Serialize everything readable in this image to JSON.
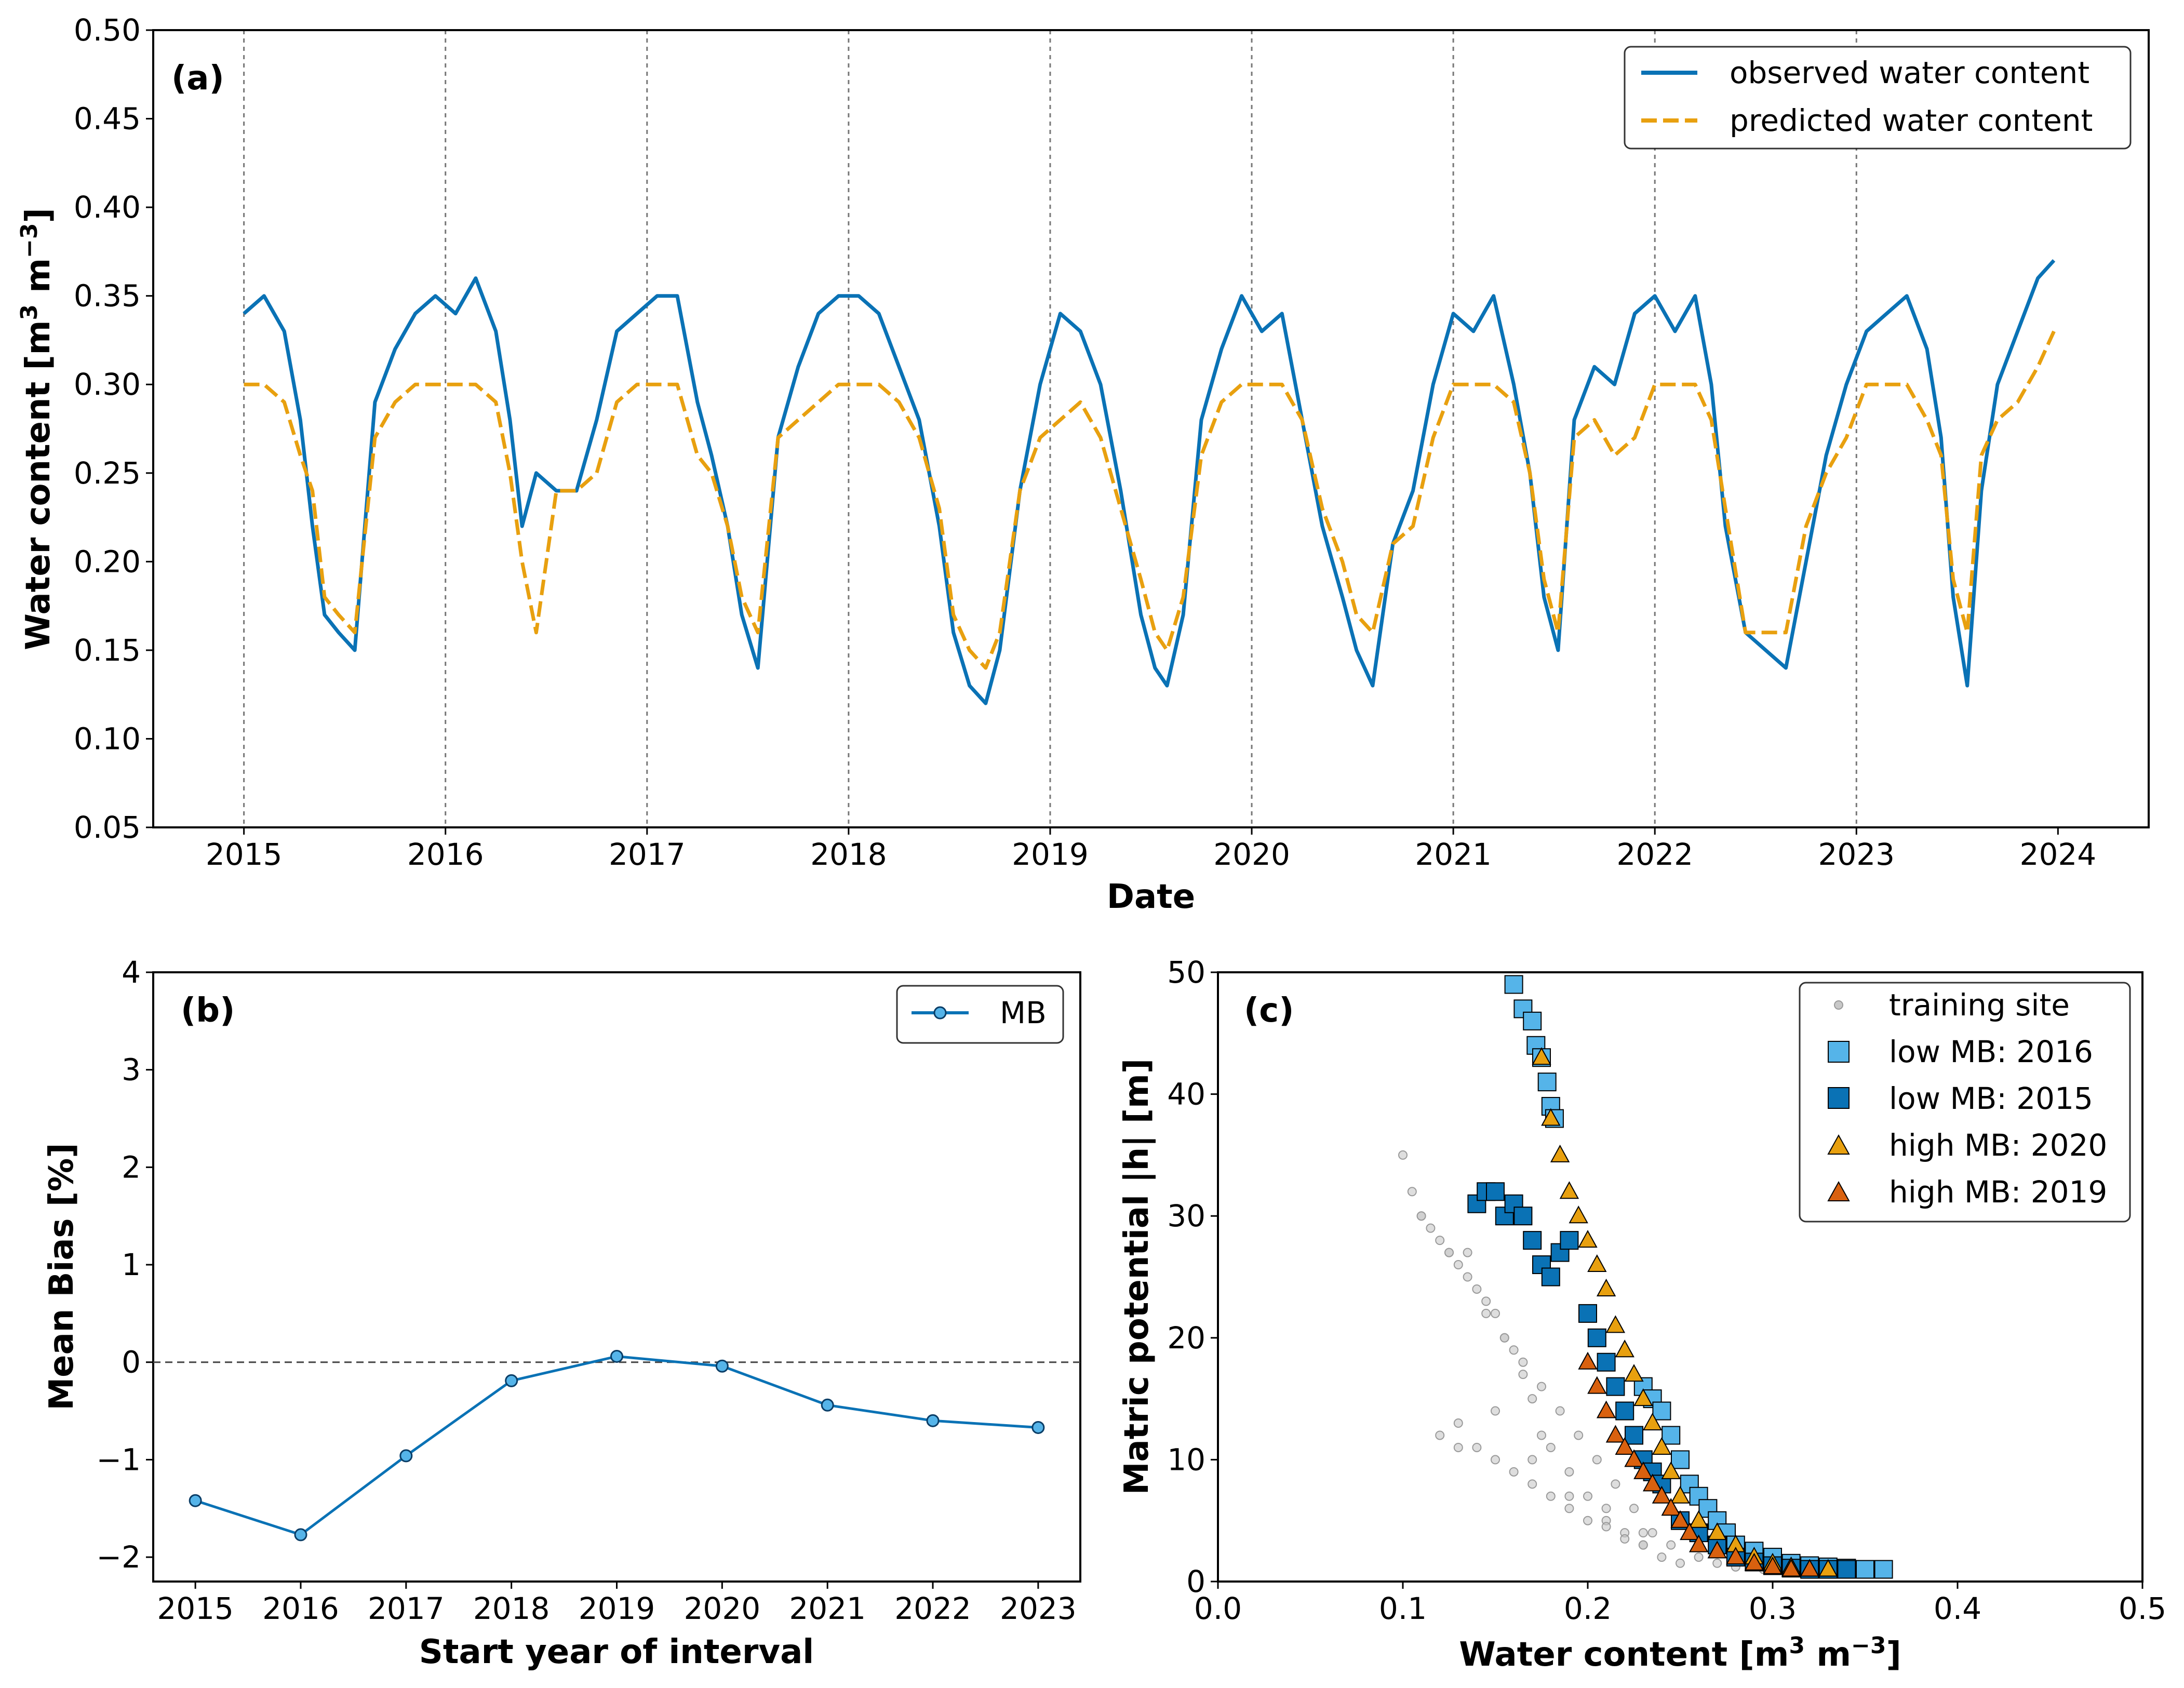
{
  "colors": {
    "blue": "#0a72b5",
    "orange": "#e8a00f",
    "light_blue": "#55b4e9",
    "dark_orange": "#d9610f",
    "gray": "#9a9a9a"
  },
  "chart_data": [
    {
      "type": "line",
      "panel_label": "(a)",
      "xlabel": "Date",
      "ylabel": "Water content [m³ m⁻³]",
      "ylabel_parts": {
        "main": "Water content [m",
        "sup1": "3",
        "mid": " m",
        "sup2": "−3",
        "end": "]"
      },
      "xlim": [
        2014.55,
        2024.45
      ],
      "ylim": [
        0.05,
        0.5
      ],
      "xticks": [
        "2015",
        "2016",
        "2017",
        "2018",
        "2019",
        "2020",
        "2021",
        "2022",
        "2023",
        "2024"
      ],
      "yticks": [
        "0.05",
        "0.10",
        "0.15",
        "0.20",
        "0.25",
        "0.30",
        "0.35",
        "0.40",
        "0.45",
        "0.50"
      ],
      "year_lines": [
        2015,
        2016,
        2017,
        2018,
        2019,
        2020,
        2021,
        2022,
        2023
      ],
      "legend": [
        "observed water content",
        "predicted water content"
      ],
      "series": [
        {
          "name": "observed water content",
          "style": "solid",
          "x": [
            2015.0,
            2015.1,
            2015.2,
            2015.28,
            2015.34,
            2015.4,
            2015.47,
            2015.55,
            2015.65,
            2015.75,
            2015.85,
            2015.95,
            2016.05,
            2016.15,
            2016.25,
            2016.32,
            2016.38,
            2016.45,
            2016.55,
            2016.65,
            2016.75,
            2016.85,
            2016.95,
            2017.05,
            2017.15,
            2017.25,
            2017.32,
            2017.4,
            2017.47,
            2017.55,
            2017.65,
            2017.75,
            2017.85,
            2017.95,
            2018.05,
            2018.15,
            2018.25,
            2018.35,
            2018.45,
            2018.52,
            2018.6,
            2018.68,
            2018.75,
            2018.85,
            2018.95,
            2019.05,
            2019.15,
            2019.25,
            2019.35,
            2019.45,
            2019.52,
            2019.58,
            2019.66,
            2019.75,
            2019.85,
            2019.95,
            2020.05,
            2020.15,
            2020.25,
            2020.35,
            2020.45,
            2020.52,
            2020.6,
            2020.7,
            2020.8,
            2020.9,
            2021.0,
            2021.1,
            2021.2,
            2021.3,
            2021.38,
            2021.45,
            2021.52,
            2021.6,
            2021.7,
            2021.8,
            2021.9,
            2022.0,
            2022.1,
            2022.2,
            2022.28,
            2022.35,
            2022.45,
            2022.55,
            2022.65,
            2022.75,
            2022.85,
            2022.95,
            2023.05,
            2023.15,
            2023.25,
            2023.35,
            2023.42,
            2023.48,
            2023.55,
            2023.62,
            2023.7,
            2023.8,
            2023.9,
            2023.98
          ],
          "y": [
            0.34,
            0.35,
            0.33,
            0.28,
            0.22,
            0.17,
            0.16,
            0.15,
            0.29,
            0.32,
            0.34,
            0.35,
            0.34,
            0.36,
            0.33,
            0.28,
            0.22,
            0.25,
            0.24,
            0.24,
            0.28,
            0.33,
            0.34,
            0.35,
            0.35,
            0.29,
            0.26,
            0.22,
            0.17,
            0.14,
            0.27,
            0.31,
            0.34,
            0.35,
            0.35,
            0.34,
            0.31,
            0.28,
            0.22,
            0.16,
            0.13,
            0.12,
            0.15,
            0.24,
            0.3,
            0.34,
            0.33,
            0.3,
            0.24,
            0.17,
            0.14,
            0.13,
            0.17,
            0.28,
            0.32,
            0.35,
            0.33,
            0.34,
            0.28,
            0.22,
            0.18,
            0.15,
            0.13,
            0.21,
            0.24,
            0.3,
            0.34,
            0.33,
            0.35,
            0.3,
            0.25,
            0.18,
            0.15,
            0.28,
            0.31,
            0.3,
            0.34,
            0.35,
            0.33,
            0.35,
            0.3,
            0.22,
            0.16,
            0.15,
            0.14,
            0.2,
            0.26,
            0.3,
            0.33,
            0.34,
            0.35,
            0.32,
            0.27,
            0.18,
            0.13,
            0.24,
            0.3,
            0.33,
            0.36,
            0.37
          ]
        },
        {
          "name": "predicted water content",
          "style": "dashed",
          "x": [
            2015.0,
            2015.1,
            2015.2,
            2015.28,
            2015.34,
            2015.4,
            2015.47,
            2015.55,
            2015.65,
            2015.75,
            2015.85,
            2015.95,
            2016.05,
            2016.15,
            2016.25,
            2016.32,
            2016.38,
            2016.45,
            2016.55,
            2016.65,
            2016.75,
            2016.85,
            2016.95,
            2017.05,
            2017.15,
            2017.25,
            2017.32,
            2017.4,
            2017.47,
            2017.55,
            2017.65,
            2017.75,
            2017.85,
            2017.95,
            2018.05,
            2018.15,
            2018.25,
            2018.35,
            2018.45,
            2018.52,
            2018.6,
            2018.68,
            2018.75,
            2018.85,
            2018.95,
            2019.05,
            2019.15,
            2019.25,
            2019.35,
            2019.45,
            2019.52,
            2019.58,
            2019.66,
            2019.75,
            2019.85,
            2019.95,
            2020.05,
            2020.15,
            2020.25,
            2020.35,
            2020.45,
            2020.52,
            2020.6,
            2020.7,
            2020.8,
            2020.9,
            2021.0,
            2021.1,
            2021.2,
            2021.3,
            2021.38,
            2021.45,
            2021.52,
            2021.6,
            2021.7,
            2021.8,
            2021.9,
            2022.0,
            2022.1,
            2022.2,
            2022.28,
            2022.35,
            2022.45,
            2022.55,
            2022.65,
            2022.75,
            2022.85,
            2022.95,
            2023.05,
            2023.15,
            2023.25,
            2023.35,
            2023.42,
            2023.48,
            2023.55,
            2023.62,
            2023.7,
            2023.8,
            2023.9,
            2023.98
          ],
          "y": [
            0.3,
            0.3,
            0.29,
            0.26,
            0.24,
            0.18,
            0.17,
            0.16,
            0.27,
            0.29,
            0.3,
            0.3,
            0.3,
            0.3,
            0.29,
            0.25,
            0.2,
            0.16,
            0.24,
            0.24,
            0.25,
            0.29,
            0.3,
            0.3,
            0.3,
            0.26,
            0.25,
            0.22,
            0.18,
            0.16,
            0.27,
            0.28,
            0.29,
            0.3,
            0.3,
            0.3,
            0.29,
            0.27,
            0.23,
            0.17,
            0.15,
            0.14,
            0.16,
            0.24,
            0.27,
            0.28,
            0.29,
            0.27,
            0.23,
            0.19,
            0.16,
            0.15,
            0.18,
            0.26,
            0.29,
            0.3,
            0.3,
            0.3,
            0.28,
            0.23,
            0.2,
            0.17,
            0.16,
            0.21,
            0.22,
            0.27,
            0.3,
            0.3,
            0.3,
            0.29,
            0.25,
            0.19,
            0.16,
            0.27,
            0.28,
            0.26,
            0.27,
            0.3,
            0.3,
            0.3,
            0.28,
            0.23,
            0.16,
            0.16,
            0.16,
            0.22,
            0.25,
            0.27,
            0.3,
            0.3,
            0.3,
            0.28,
            0.26,
            0.19,
            0.16,
            0.26,
            0.28,
            0.29,
            0.31,
            0.33
          ]
        }
      ]
    },
    {
      "type": "line",
      "panel_label": "(b)",
      "xlabel": "Start year of interval",
      "ylabel": "Mean Bias [%]",
      "xlim": [
        2014.6,
        2023.4
      ],
      "ylim": [
        -2.25,
        4.0
      ],
      "categories": [
        "2015",
        "2016",
        "2017",
        "2018",
        "2019",
        "2020",
        "2021",
        "2022",
        "2023"
      ],
      "yticks": [
        "−2",
        "−1",
        "0",
        "1",
        "2",
        "3",
        "4"
      ],
      "legend": [
        "MB"
      ],
      "series": [
        {
          "name": "MB",
          "values": [
            -1.42,
            -1.77,
            -0.96,
            -0.19,
            0.06,
            -0.04,
            -0.44,
            -0.6,
            -0.67
          ]
        }
      ]
    },
    {
      "type": "scatter",
      "panel_label": "(c)",
      "xlabel": "Water content [m³ m⁻³]",
      "xlabel_parts": {
        "main": "Water content [m",
        "sup1": "3",
        "mid": " m",
        "sup2": "−3",
        "end": "]"
      },
      "ylabel": "Matric potential |h| [m]",
      "xlim": [
        0.0,
        0.5
      ],
      "ylim": [
        0,
        50
      ],
      "xticks": [
        "0.0",
        "0.1",
        "0.2",
        "0.3",
        "0.4",
        "0.5"
      ],
      "yticks": [
        "0",
        "10",
        "20",
        "30",
        "40",
        "50"
      ],
      "legend": [
        "training site",
        "low MB: 2016",
        "low MB: 2015",
        "high MB: 2020",
        "high MB: 2019"
      ],
      "series": [
        {
          "name": "training site",
          "marker": "circle",
          "x": [
            0.1,
            0.105,
            0.11,
            0.115,
            0.12,
            0.125,
            0.13,
            0.135,
            0.14,
            0.145,
            0.15,
            0.155,
            0.16,
            0.165,
            0.17,
            0.175,
            0.18,
            0.19,
            0.2,
            0.21,
            0.22,
            0.23,
            0.24,
            0.25,
            0.12,
            0.13,
            0.14,
            0.15,
            0.16,
            0.17,
            0.18,
            0.19,
            0.2,
            0.21,
            0.22,
            0.23,
            0.11,
            0.125,
            0.135,
            0.145,
            0.155,
            0.165,
            0.175,
            0.185,
            0.195,
            0.205,
            0.215,
            0.225,
            0.235,
            0.245,
            0.26,
            0.27,
            0.28,
            0.295,
            0.13,
            0.15,
            0.17,
            0.19,
            0.21,
            0.23
          ],
          "y": [
            35,
            32,
            30,
            29,
            28,
            27,
            26,
            27,
            24,
            23,
            22,
            20,
            19,
            17,
            15,
            12,
            11,
            9,
            7,
            5,
            4,
            3,
            2,
            1.5,
            12,
            13,
            11,
            10,
            9,
            8,
            7,
            6,
            5,
            4.5,
            3.5,
            3,
            30,
            27,
            25,
            22,
            20,
            18,
            16,
            14,
            12,
            10,
            8,
            6,
            4,
            3,
            2,
            1.5,
            1.2,
            1,
            11,
            14,
            10,
            7,
            6,
            4
          ]
        },
        {
          "name": "low MB: 2016",
          "marker": "square",
          "fill": "#55b4e9",
          "x": [
            0.16,
            0.165,
            0.17,
            0.172,
            0.175,
            0.178,
            0.18,
            0.182,
            0.23,
            0.235,
            0.24,
            0.245,
            0.25,
            0.255,
            0.26,
            0.265,
            0.27,
            0.275,
            0.28,
            0.29,
            0.3,
            0.31,
            0.32,
            0.33,
            0.34,
            0.35,
            0.36
          ],
          "y": [
            49,
            47,
            46,
            44,
            43,
            41,
            39,
            38,
            16,
            15,
            14,
            12,
            10,
            8,
            7,
            6,
            5,
            4,
            3,
            2.5,
            2,
            1.5,
            1.3,
            1.2,
            1.1,
            1.0,
            1.0
          ]
        },
        {
          "name": "low MB: 2015",
          "marker": "square",
          "fill": "#0a72b5",
          "x": [
            0.14,
            0.145,
            0.15,
            0.155,
            0.16,
            0.165,
            0.17,
            0.175,
            0.18,
            0.185,
            0.19,
            0.2,
            0.205,
            0.21,
            0.215,
            0.22,
            0.225,
            0.23,
            0.235,
            0.24,
            0.25,
            0.26,
            0.27,
            0.28,
            0.29,
            0.3,
            0.31,
            0.32,
            0.33,
            0.34
          ],
          "y": [
            31,
            32,
            32,
            30,
            31,
            30,
            28,
            26,
            25,
            27,
            28,
            22,
            20,
            18,
            16,
            14,
            12,
            10,
            9,
            8,
            5,
            4,
            3,
            2,
            1.6,
            1.3,
            1.1,
            1.0,
            1.0,
            1.0
          ]
        },
        {
          "name": "high MB: 2020",
          "marker": "triangle",
          "fill": "#e8a00f",
          "x": [
            0.175,
            0.18,
            0.185,
            0.19,
            0.195,
            0.2,
            0.205,
            0.21,
            0.215,
            0.22,
            0.225,
            0.23,
            0.235,
            0.24,
            0.245,
            0.25,
            0.26,
            0.27,
            0.28,
            0.29,
            0.3,
            0.31,
            0.32,
            0.33
          ],
          "y": [
            43,
            38,
            35,
            32,
            30,
            28,
            26,
            24,
            21,
            19,
            17,
            15,
            13,
            11,
            9,
            7,
            5,
            4,
            3,
            2,
            1.5,
            1.2,
            1.0,
            1.0
          ]
        },
        {
          "name": "high MB: 2019",
          "marker": "triangle",
          "fill": "#d9610f",
          "x": [
            0.2,
            0.205,
            0.21,
            0.215,
            0.22,
            0.225,
            0.23,
            0.235,
            0.24,
            0.245,
            0.25,
            0.255,
            0.26,
            0.27,
            0.28,
            0.29,
            0.3,
            0.31,
            0.32
          ],
          "y": [
            18,
            16,
            14,
            12,
            11,
            10,
            9,
            8,
            7,
            6,
            5,
            4,
            3,
            2.5,
            2,
            1.5,
            1.2,
            1.0,
            1.0
          ]
        }
      ]
    }
  ]
}
